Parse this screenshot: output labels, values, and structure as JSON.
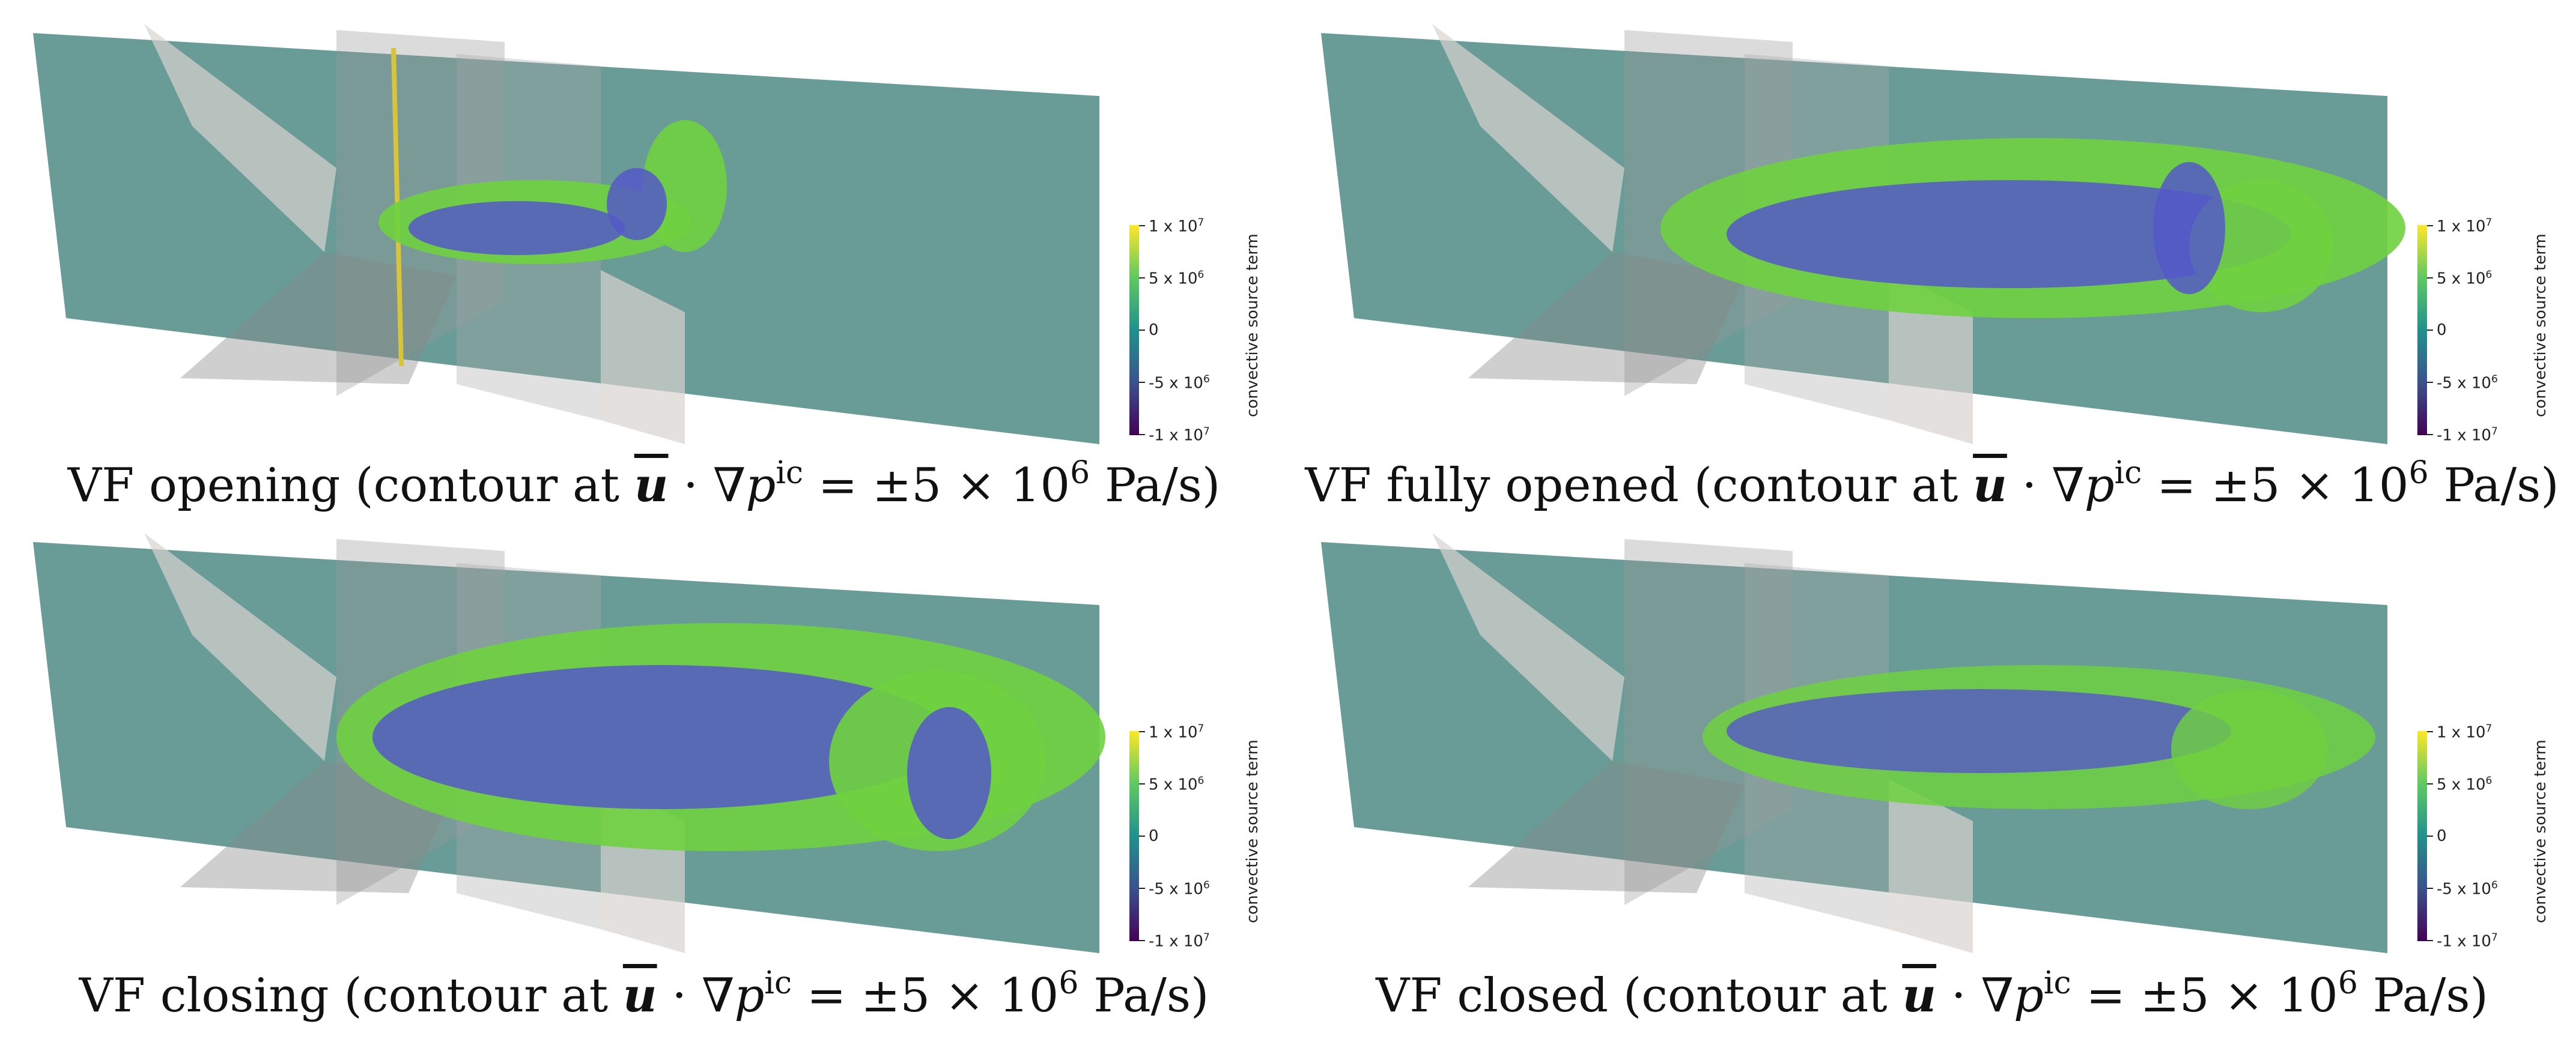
{
  "panels": [
    {
      "caption_prefix": "VF opening (contour at "
    },
    {
      "caption_prefix": "VF fully opened (contour at "
    },
    {
      "caption_prefix": "VF closing (contour at "
    },
    {
      "caption_prefix": "VF closed (contour at "
    }
  ],
  "caption_math": {
    "u": "u",
    "dot": " · ∇",
    "p": "p",
    "ic": "ic",
    "eq": " = ±5 × 10",
    "exp": "6",
    "unit": " Pa/s)"
  },
  "colorbar": {
    "title": "convective source term",
    "ticks": [
      "1 x 10",
      "5 x 10",
      "0",
      "-5 x 10",
      "-1 x 10"
    ],
    "exps": [
      "7",
      "6",
      "",
      "6",
      "7"
    ]
  },
  "colors": {
    "plane": "#4f8a85",
    "green": "#6fd13f",
    "blue": "#5558c8",
    "wall": "#d8d3cf"
  }
}
